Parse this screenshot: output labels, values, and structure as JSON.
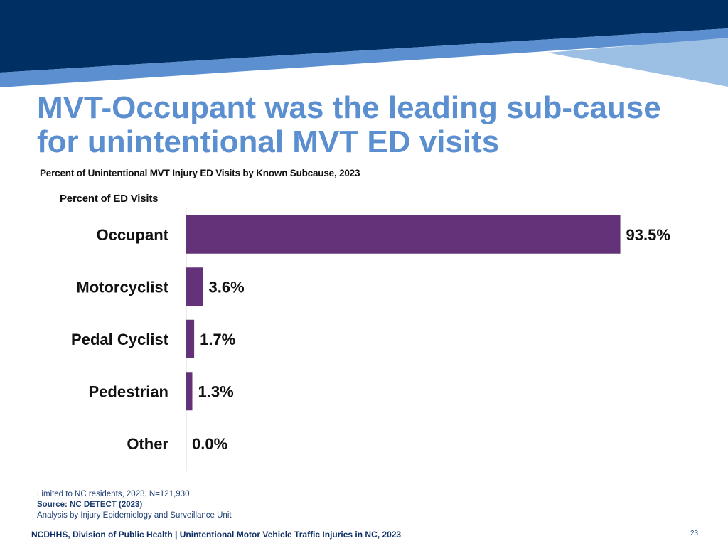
{
  "slide": {
    "title_line1": "MVT-Occupant was the leading sub-cause",
    "title_line2": "for unintentional MVT ED visits",
    "notes_line1": "Limited to NC residents, 2023, N=121,930",
    "source": "Source: NC DETECT (2023)",
    "analysis": "Analysis by Injury Epidemiology and Surveillance Unit",
    "footer": "NCDHHS, Division of Public Health | Unintentional Motor Vehicle Traffic Injuries in NC, 2023",
    "page_number": "23",
    "colors": {
      "banner_dark": "#002f63",
      "banner_stripe": "#5b8fd0",
      "banner_light": "#9cc0e3",
      "title": "#5b8fd0"
    }
  },
  "chart_data": {
    "type": "bar",
    "orientation": "horizontal",
    "title": "Percent of Unintentional MVT Injury ED Visits by Known Subcause, 2023",
    "xlabel": "Percent of ED Visits",
    "categories": [
      "Occupant",
      "Motorcyclist",
      "Pedal Cyclist",
      "Pedestrian",
      "Other"
    ],
    "values": [
      93.5,
      3.6,
      1.7,
      1.3,
      0.0
    ],
    "value_labels": [
      "93.5%",
      "3.6%",
      "1.7%",
      "1.3%",
      "0.0%"
    ],
    "xlim": [
      0,
      100
    ],
    "grid": false,
    "legend": "none",
    "bar_color": "#643278"
  }
}
